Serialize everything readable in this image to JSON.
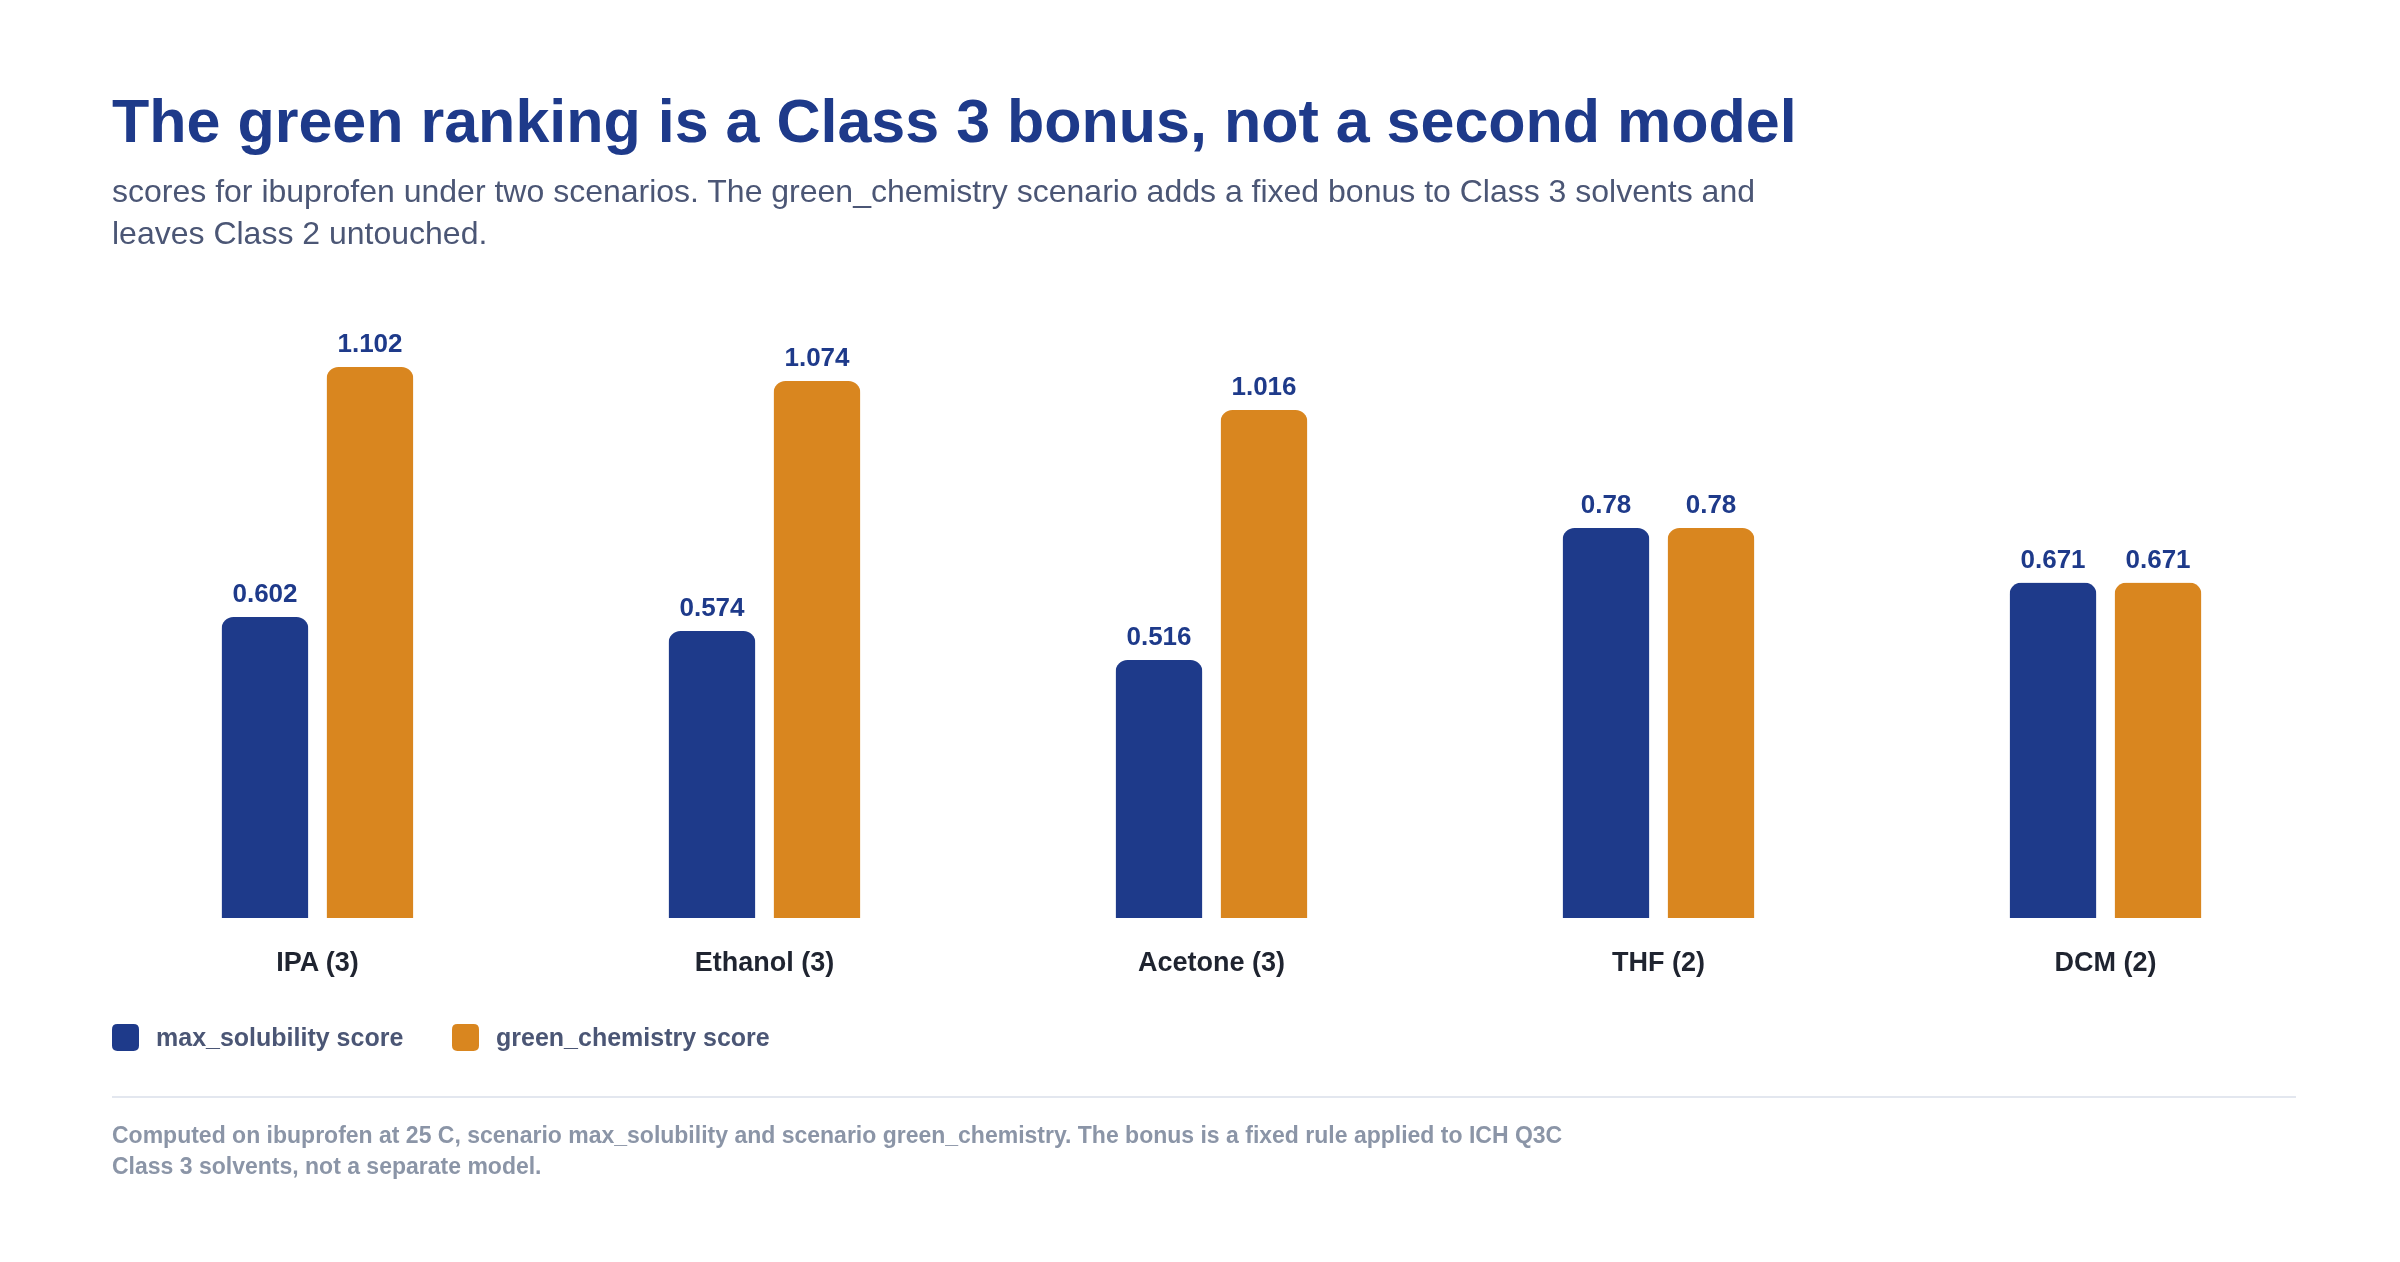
{
  "chart_data": {
    "type": "bar",
    "title": "The green ranking is a Class 3 bonus, not a second model",
    "subtitle": "scores for ibuprofen under two scenarios. The green_chemistry scenario adds a fixed bonus to Class 3 solvents and leaves Class 2 untouched.",
    "categories": [
      "IPA (3)",
      "Ethanol (3)",
      "Acetone (3)",
      "THF (2)",
      "DCM (2)"
    ],
    "series": [
      {
        "name": "max_solubility score",
        "color": "#1e3a8a",
        "values": [
          0.602,
          0.574,
          0.516,
          0.78,
          0.671
        ]
      },
      {
        "name": "green_chemistry score",
        "color": "#d9861f",
        "values": [
          1.102,
          1.074,
          1.016,
          0.78,
          0.671
        ]
      }
    ],
    "data_labels": true,
    "legend": "bottom left",
    "annotations": [
      "Computed on ibuprofen at 25 C, scenario max_solubility and scenario green_chemistry. The bonus is a fixed rule applied to ICH Q3C Class 3 solvents, not a separate model."
    ]
  }
}
